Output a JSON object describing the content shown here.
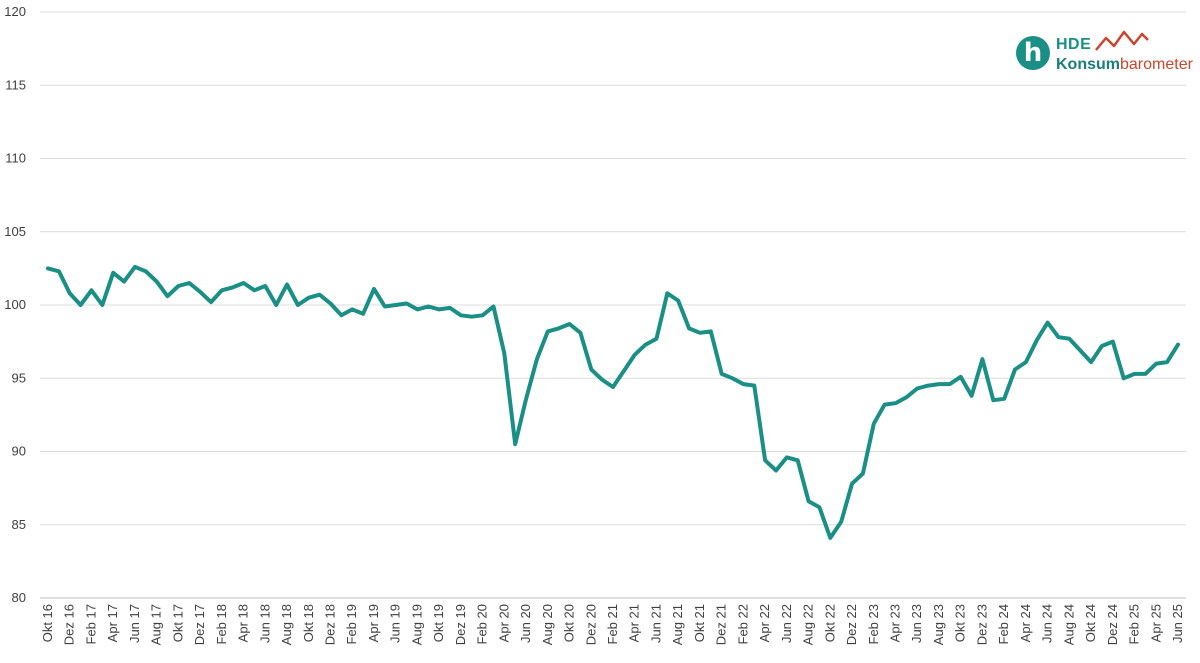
{
  "logo": {
    "letter": "h",
    "brand": "HDE",
    "name_part1": "Konsum",
    "name_part2": "barometer",
    "colors": {
      "teal": "#1a8f86",
      "red": "#c8462c"
    }
  },
  "chart_data": {
    "type": "line",
    "title": "",
    "xlabel": "",
    "ylabel": "",
    "ylim": [
      80,
      120
    ],
    "yticks": [
      80,
      85,
      90,
      95,
      100,
      105,
      110,
      115,
      120
    ],
    "grid": "horizontal",
    "line_color": "#1a8f86",
    "x_tick_labels": [
      "Okt 16",
      "Dez 16",
      "Feb 17",
      "Apr 17",
      "Jun 17",
      "Aug 17",
      "Okt 17",
      "Dez 17",
      "Feb 18",
      "Apr 18",
      "Jun 18",
      "Aug 18",
      "Okt 18",
      "Dez 18",
      "Feb 19",
      "Apr 19",
      "Jun 19",
      "Aug 19",
      "Okt 19",
      "Dez 19",
      "Feb 20",
      "Apr 20",
      "Jun 20",
      "Aug 20",
      "Okt 20",
      "Dez 20",
      "Feb 21",
      "Apr 21",
      "Jun 21",
      "Aug 21",
      "Okt 21",
      "Dez 21",
      "Feb 22",
      "Apr 22",
      "Jun 22",
      "Aug 22",
      "Okt 22",
      "Dez 22",
      "Feb 23",
      "Apr 23",
      "Jun 23",
      "Aug 23",
      "Okt 23",
      "Dez 23",
      "Feb 24",
      "Apr 24",
      "Jun 24",
      "Aug 24",
      "Okt 24",
      "Dez 24",
      "Feb 25",
      "Apr 25",
      "Jun 25"
    ],
    "series": [
      {
        "start": "Okt 16",
        "end": "Jun 25",
        "frequency": "monthly",
        "values": [
          102.5,
          102.3,
          100.8,
          100.0,
          101.0,
          100.0,
          102.2,
          101.6,
          102.6,
          102.3,
          101.6,
          100.6,
          101.3,
          101.5,
          100.9,
          100.2,
          101.0,
          101.2,
          101.5,
          101.0,
          101.3,
          100.0,
          101.4,
          100.0,
          100.5,
          100.7,
          100.1,
          99.3,
          99.7,
          99.4,
          101.1,
          99.9,
          100.0,
          100.1,
          99.7,
          99.9,
          99.7,
          99.8,
          99.3,
          99.2,
          99.3,
          99.9,
          96.7,
          90.5,
          93.6,
          96.3,
          98.2,
          98.4,
          98.7,
          98.1,
          95.6,
          94.9,
          94.4,
          95.5,
          96.6,
          97.3,
          97.7,
          100.8,
          100.3,
          98.4,
          98.1,
          98.2,
          95.3,
          95.0,
          94.6,
          94.5,
          89.4,
          88.7,
          89.6,
          89.4,
          86.6,
          86.2,
          84.1,
          85.2,
          87.8,
          88.5,
          91.9,
          93.2,
          93.3,
          93.7,
          94.3,
          94.5,
          94.6,
          94.6,
          95.1,
          93.8,
          96.3,
          93.5,
          93.6,
          95.6,
          96.1,
          97.6,
          98.8,
          97.8,
          97.7,
          96.9,
          96.1,
          97.2,
          97.5,
          95.0,
          95.3,
          95.3,
          96.0,
          96.1,
          97.3
        ]
      }
    ]
  }
}
